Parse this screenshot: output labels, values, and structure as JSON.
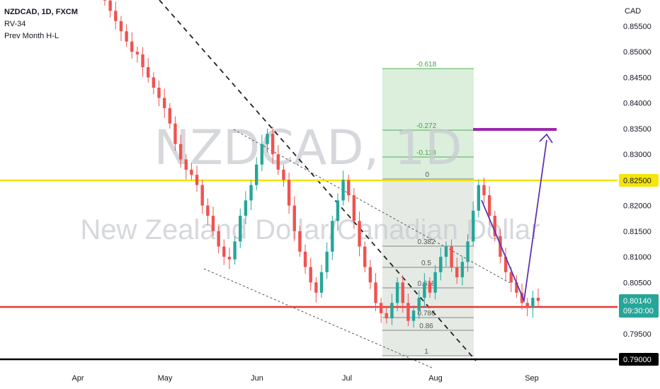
{
  "legend": {
    "symbol": "NZDCAD, 1D, FXCM",
    "indicator_1": "RV-34",
    "indicator_2": "Prev Month H-L"
  },
  "watermark": {
    "symbol": "NZDCAD, 1D",
    "name": "New Zealand Dollar/Canadian Dollar"
  },
  "price_axis": {
    "currency": "CAD",
    "ticks": [
      "0.85500",
      "0.85000",
      "0.84500",
      "0.84000",
      "0.83500",
      "0.83000",
      "0.82500",
      "0.82000",
      "0.81500",
      "0.81000",
      "0.80500",
      "0.80000",
      "0.79500",
      "0.79000"
    ],
    "last_price_label": "0.80140",
    "countdown": "09:30:00",
    "yellow_level_label": "0.82500",
    "black_level_label": "0.79000"
  },
  "time_axis": {
    "labels": [
      "Apr",
      "May",
      "Jun",
      "Jul",
      "Aug",
      "Sep"
    ]
  },
  "chart_data": {
    "type": "candlestick",
    "title": "",
    "ylim": [
      0.788,
      0.8595
    ],
    "x_labels": [
      "Apr",
      "May",
      "Jun",
      "Jul",
      "Aug",
      "Sep"
    ],
    "horizontal_levels": [
      {
        "name": "yellow",
        "value": 0.825,
        "color": "#f5e50a"
      },
      {
        "name": "last",
        "value": 0.8014,
        "color": "#e53935"
      },
      {
        "name": "black",
        "value": 0.79,
        "color": "#000000"
      },
      {
        "name": "target",
        "value": 0.835,
        "color": "#9c27b0"
      }
    ],
    "fibonacci": {
      "levels": [
        "-0.618",
        "-0.272",
        "-0.118",
        "0",
        "0.382",
        "0.5",
        "0.618",
        "0.786",
        "0.86",
        "1"
      ],
      "high": 0.825,
      "low": 0.79
    },
    "candles_close_approx": [
      0.86,
      0.858,
      0.856,
      0.854,
      0.852,
      0.85,
      0.8495,
      0.847,
      0.845,
      0.843,
      0.841,
      0.839,
      0.836,
      0.832,
      0.829,
      0.827,
      0.826,
      0.824,
      0.82,
      0.818,
      0.815,
      0.812,
      0.81,
      0.8095,
      0.813,
      0.818,
      0.821,
      0.824,
      0.828,
      0.832,
      0.834,
      0.83,
      0.827,
      0.825,
      0.82,
      0.815,
      0.811,
      0.808,
      0.805,
      0.803,
      0.807,
      0.811,
      0.817,
      0.821,
      0.825,
      0.822,
      0.817,
      0.812,
      0.808,
      0.805,
      0.801,
      0.799,
      0.798,
      0.801,
      0.805,
      0.801,
      0.7975,
      0.7995,
      0.802,
      0.805,
      0.803,
      0.807,
      0.81,
      0.812,
      0.808,
      0.806,
      0.809,
      0.813,
      0.819,
      0.824,
      0.822,
      0.818,
      0.814,
      0.81,
      0.807,
      0.805,
      0.803,
      0.801,
      0.8,
      0.802,
      0.8014
    ]
  }
}
